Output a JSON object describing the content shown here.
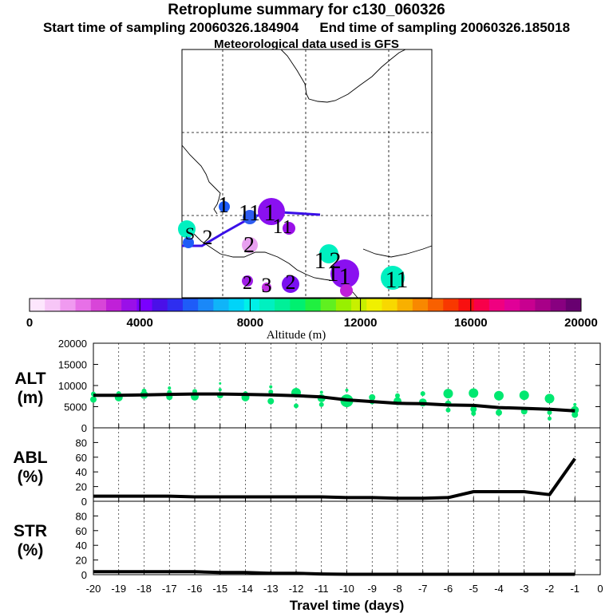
{
  "header": {
    "title": "Retroplume summary for c130_060326",
    "start": "Start time of sampling 20060326.184904",
    "end": "End time of sampling 20060326.185018",
    "met": "Meteorological data used is GFS"
  },
  "map": {
    "labels": [
      {
        "text": "1",
        "x": 280,
        "y": 266,
        "size": 28
      },
      {
        "text": "1",
        "x": 306,
        "y": 276,
        "size": 28
      },
      {
        "text": "1",
        "x": 319,
        "y": 276,
        "size": 28
      },
      {
        "text": "1",
        "x": 338,
        "y": 276,
        "size": 30
      },
      {
        "text": "1",
        "x": 348,
        "y": 292,
        "size": 26
      },
      {
        "text": "1",
        "x": 360,
        "y": 292,
        "size": 24
      },
      {
        "text": "1",
        "x": 401,
        "y": 336,
        "size": 30
      },
      {
        "text": "2",
        "x": 420,
        "y": 336,
        "size": 30
      },
      {
        "text": "1",
        "x": 417,
        "y": 352,
        "size": 30
      },
      {
        "text": "1",
        "x": 432,
        "y": 356,
        "size": 30
      },
      {
        "text": "11",
        "x": 497,
        "y": 360,
        "size": 30
      },
      {
        "text": "2",
        "x": 312,
        "y": 316,
        "size": 28
      },
      {
        "text": "2",
        "x": 310,
        "y": 362,
        "size": 24
      },
      {
        "text": "3",
        "x": 334,
        "y": 366,
        "size": 26
      },
      {
        "text": "2",
        "x": 364,
        "y": 362,
        "size": 26
      },
      {
        "text": "S",
        "x": 238,
        "y": 300,
        "size": 22
      },
      {
        "text": "2",
        "x": 260,
        "y": 306,
        "size": 26
      }
    ]
  },
  "colorbar": {
    "tick_labels": [
      "0",
      "4000",
      "8000",
      "12000",
      "16000",
      "20000"
    ],
    "axis_label": "Altitude (m)",
    "colors": [
      "#fde6fd",
      "#f7c6f7",
      "#f09af0",
      "#e770e7",
      "#d845d8",
      "#c020d8",
      "#9a10e8",
      "#7a00ff",
      "#4a10e8",
      "#2e2ef0",
      "#1e5cf8",
      "#1a88f8",
      "#10b4f8",
      "#00d4f8",
      "#00f0e8",
      "#00f0c0",
      "#00f098",
      "#00f070",
      "#20f040",
      "#60f020",
      "#98f000",
      "#c8f000",
      "#f0f000",
      "#f8d800",
      "#f8b000",
      "#f88800",
      "#f86000",
      "#f83800",
      "#f81010",
      "#f8004a",
      "#f00080",
      "#e00098",
      "#c80090",
      "#a80088",
      "#880080",
      "#680070"
    ],
    "range": [
      0,
      20000
    ]
  },
  "chart_data": [
    {
      "type": "line",
      "panel": "ALT",
      "ylabel": "ALT\n(m)",
      "ylim": [
        0,
        20000
      ],
      "yticks": [
        0,
        5000,
        10000,
        15000,
        20000
      ],
      "xlim": [
        -20,
        0
      ],
      "x": [
        -20,
        -19,
        -18,
        -17,
        -16,
        -15,
        -14,
        -13,
        -12,
        -11,
        -10,
        -9,
        -8,
        -7,
        -6,
        -5,
        -4,
        -3,
        -2,
        -1
      ],
      "values": [
        7700,
        7700,
        7800,
        7900,
        8000,
        8000,
        7900,
        7800,
        7600,
        7300,
        6600,
        6200,
        5800,
        5700,
        5400,
        5300,
        4800,
        4600,
        4400,
        4000
      ],
      "scatter": [
        {
          "x": -20,
          "y": 6700,
          "r": 4
        },
        {
          "x": -20,
          "y": 8000,
          "r": 3
        },
        {
          "x": -19,
          "y": 7200,
          "r": 5
        },
        {
          "x": -19,
          "y": 8100,
          "r": 3
        },
        {
          "x": -18,
          "y": 7800,
          "r": 5
        },
        {
          "x": -18,
          "y": 8700,
          "r": 3
        },
        {
          "x": -17,
          "y": 7300,
          "r": 4
        },
        {
          "x": -17,
          "y": 8400,
          "r": 3
        },
        {
          "x": -17,
          "y": 9400,
          "r": 2
        },
        {
          "x": -16,
          "y": 7400,
          "r": 5
        },
        {
          "x": -16,
          "y": 8600,
          "r": 3
        },
        {
          "x": -15,
          "y": 7700,
          "r": 4
        },
        {
          "x": -15,
          "y": 9000,
          "r": 2
        },
        {
          "x": -15,
          "y": 10500,
          "r": 1.5
        },
        {
          "x": -14,
          "y": 7200,
          "r": 5
        },
        {
          "x": -14,
          "y": 8100,
          "r": 3
        },
        {
          "x": -13,
          "y": 6300,
          "r": 4
        },
        {
          "x": -13,
          "y": 8500,
          "r": 3
        },
        {
          "x": -13,
          "y": 9700,
          "r": 2
        },
        {
          "x": -12,
          "y": 8300,
          "r": 6
        },
        {
          "x": -12,
          "y": 5200,
          "r": 3
        },
        {
          "x": -11,
          "y": 7000,
          "r": 5
        },
        {
          "x": -11,
          "y": 5500,
          "r": 3
        },
        {
          "x": -11,
          "y": 8400,
          "r": 2
        },
        {
          "x": -10,
          "y": 6400,
          "r": 8
        },
        {
          "x": -10,
          "y": 8900,
          "r": 2
        },
        {
          "x": -9,
          "y": 7200,
          "r": 4
        },
        {
          "x": -9,
          "y": 6100,
          "r": 3
        },
        {
          "x": -8,
          "y": 6300,
          "r": 5
        },
        {
          "x": -8,
          "y": 7600,
          "r": 3
        },
        {
          "x": -7,
          "y": 6000,
          "r": 5
        },
        {
          "x": -7,
          "y": 8100,
          "r": 3
        },
        {
          "x": -6,
          "y": 8100,
          "r": 6
        },
        {
          "x": -6,
          "y": 5700,
          "r": 4
        },
        {
          "x": -6,
          "y": 4200,
          "r": 3
        },
        {
          "x": -5,
          "y": 8200,
          "r": 6
        },
        {
          "x": -5,
          "y": 4400,
          "r": 4
        },
        {
          "x": -5,
          "y": 3400,
          "r": 3
        },
        {
          "x": -4,
          "y": 7600,
          "r": 6
        },
        {
          "x": -4,
          "y": 3600,
          "r": 4
        },
        {
          "x": -3,
          "y": 7700,
          "r": 6
        },
        {
          "x": -3,
          "y": 3900,
          "r": 4
        },
        {
          "x": -2,
          "y": 6900,
          "r": 6
        },
        {
          "x": -2,
          "y": 3600,
          "r": 3
        },
        {
          "x": -2,
          "y": 2200,
          "r": 2.5
        },
        {
          "x": -1,
          "y": 4200,
          "r": 5
        },
        {
          "x": -1,
          "y": 3100,
          "r": 4
        },
        {
          "x": -1,
          "y": 5500,
          "r": 2
        }
      ]
    },
    {
      "type": "line",
      "panel": "ABL",
      "ylabel": "ABL\n(%)",
      "ylim": [
        0,
        100
      ],
      "yticks": [
        0,
        20,
        40,
        60,
        80
      ],
      "xlim": [
        -20,
        0
      ],
      "x": [
        -20,
        -19,
        -18,
        -17,
        -16,
        -15,
        -14,
        -13,
        -12,
        -11,
        -10,
        -9,
        -8,
        -7,
        -6,
        -5,
        -4,
        -3,
        -2,
        -1
      ],
      "values": [
        7,
        7,
        7,
        7,
        6,
        6,
        6,
        6,
        6,
        6,
        5,
        5,
        4,
        4,
        5,
        13,
        13,
        13,
        9,
        58
      ]
    },
    {
      "type": "line",
      "panel": "STR",
      "ylabel": "STR\n(%)",
      "ylim": [
        0,
        100
      ],
      "yticks": [
        0,
        20,
        40,
        60,
        80
      ],
      "xlim": [
        -20,
        0
      ],
      "x": [
        -20,
        -19,
        -18,
        -17,
        -16,
        -15,
        -14,
        -13,
        -12,
        -11,
        -10,
        -9,
        -8,
        -7,
        -6,
        -5,
        -4,
        -3,
        -2,
        -1
      ],
      "values": [
        4,
        4,
        4,
        4,
        4,
        3,
        3,
        2,
        2,
        1,
        0.5,
        0.5,
        0.5,
        0.5,
        0.5,
        0.5,
        0.5,
        0.5,
        0.5,
        0.5
      ],
      "xticks": [
        -20,
        -19,
        -18,
        -17,
        -16,
        -15,
        -14,
        -13,
        -12,
        -11,
        -10,
        -9,
        -8,
        -7,
        -6,
        -5,
        -4,
        -3,
        -2,
        -1,
        0
      ],
      "xlabel": "Travel time (days)"
    }
  ]
}
